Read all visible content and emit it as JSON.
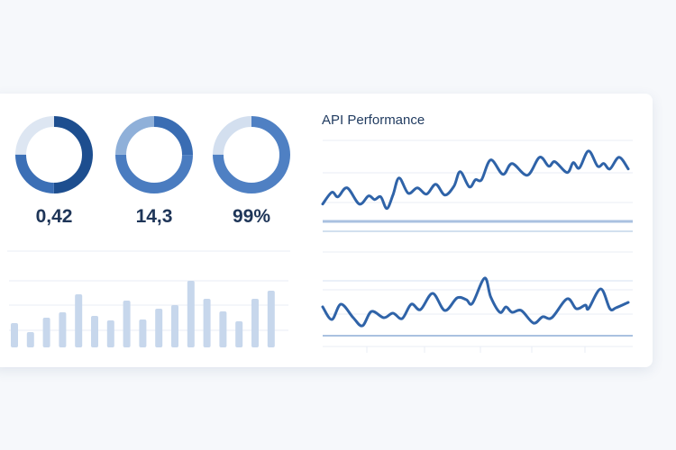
{
  "colors": {
    "dark": "#1d4e8f",
    "medium": "#3b6fb6",
    "light": "#dde6f2",
    "mid_light": "#8fb0d9",
    "bar": "#c7d7ec",
    "line": "#2f63a8",
    "grid": "#e8eef6",
    "axis": "#a9c1e0"
  },
  "kpis": [
    {
      "value": "0,42",
      "segments": [
        {
          "share": 0.5,
          "color": "#1d4e8f"
        },
        {
          "share": 0.25,
          "color": "#3b6fb6"
        },
        {
          "share": 0.25,
          "color": "#dde6f2"
        }
      ]
    },
    {
      "value": "14,3",
      "segments": [
        {
          "share": 0.25,
          "color": "#3a6db3"
        },
        {
          "share": 0.5,
          "color": "#4a7cc0"
        },
        {
          "share": 0.25,
          "color": "#8fb0d9"
        }
      ]
    },
    {
      "value": "99%",
      "segments": [
        {
          "share": 0.75,
          "color": "#4f80c3"
        },
        {
          "share": 0.25,
          "color": "#d3dfef"
        }
      ]
    }
  ],
  "chart_data": [
    {
      "type": "bar",
      "values": [
        27,
        17,
        33,
        39,
        59,
        35,
        30,
        52,
        31,
        43,
        47,
        74,
        54,
        40,
        29,
        54,
        63
      ],
      "ylim": [
        0,
        90
      ],
      "grid": true
    },
    {
      "type": "line",
      "title": "API Performance",
      "grid": true,
      "ylim": [
        0,
        100
      ],
      "x": [
        0,
        3,
        5,
        8,
        12,
        15,
        17,
        19,
        21,
        23,
        25,
        28,
        31,
        34,
        37,
        40,
        43,
        45,
        48,
        50,
        52,
        55,
        59,
        62,
        67,
        71,
        74,
        76,
        80,
        82,
        84,
        87,
        90,
        92,
        94,
        97,
        100
      ],
      "values": [
        20,
        33,
        28,
        38,
        20,
        29,
        25,
        28,
        15,
        30,
        49,
        32,
        38,
        31,
        42,
        30,
        40,
        56,
        39,
        47,
        47,
        69,
        53,
        65,
        52,
        72,
        62,
        67,
        55,
        66,
        60,
        79,
        62,
        65,
        59,
        72,
        59
      ]
    },
    {
      "type": "line",
      "grid": true,
      "ylim": [
        0,
        100
      ],
      "x": [
        0,
        3,
        6,
        10,
        13,
        16,
        20,
        23,
        26,
        29,
        32,
        36,
        40,
        44,
        47,
        49,
        53,
        55,
        58,
        60,
        62,
        65,
        69,
        72,
        75,
        80,
        83,
        86,
        87,
        91,
        94,
        96,
        100
      ],
      "values": [
        29,
        15,
        32,
        17,
        8,
        24,
        17,
        22,
        16,
        32,
        26,
        44,
        25,
        39,
        37,
        33,
        61,
        40,
        23,
        29,
        23,
        25,
        11,
        18,
        17,
        38,
        27,
        31,
        27,
        49,
        27,
        28,
        34
      ]
    }
  ]
}
